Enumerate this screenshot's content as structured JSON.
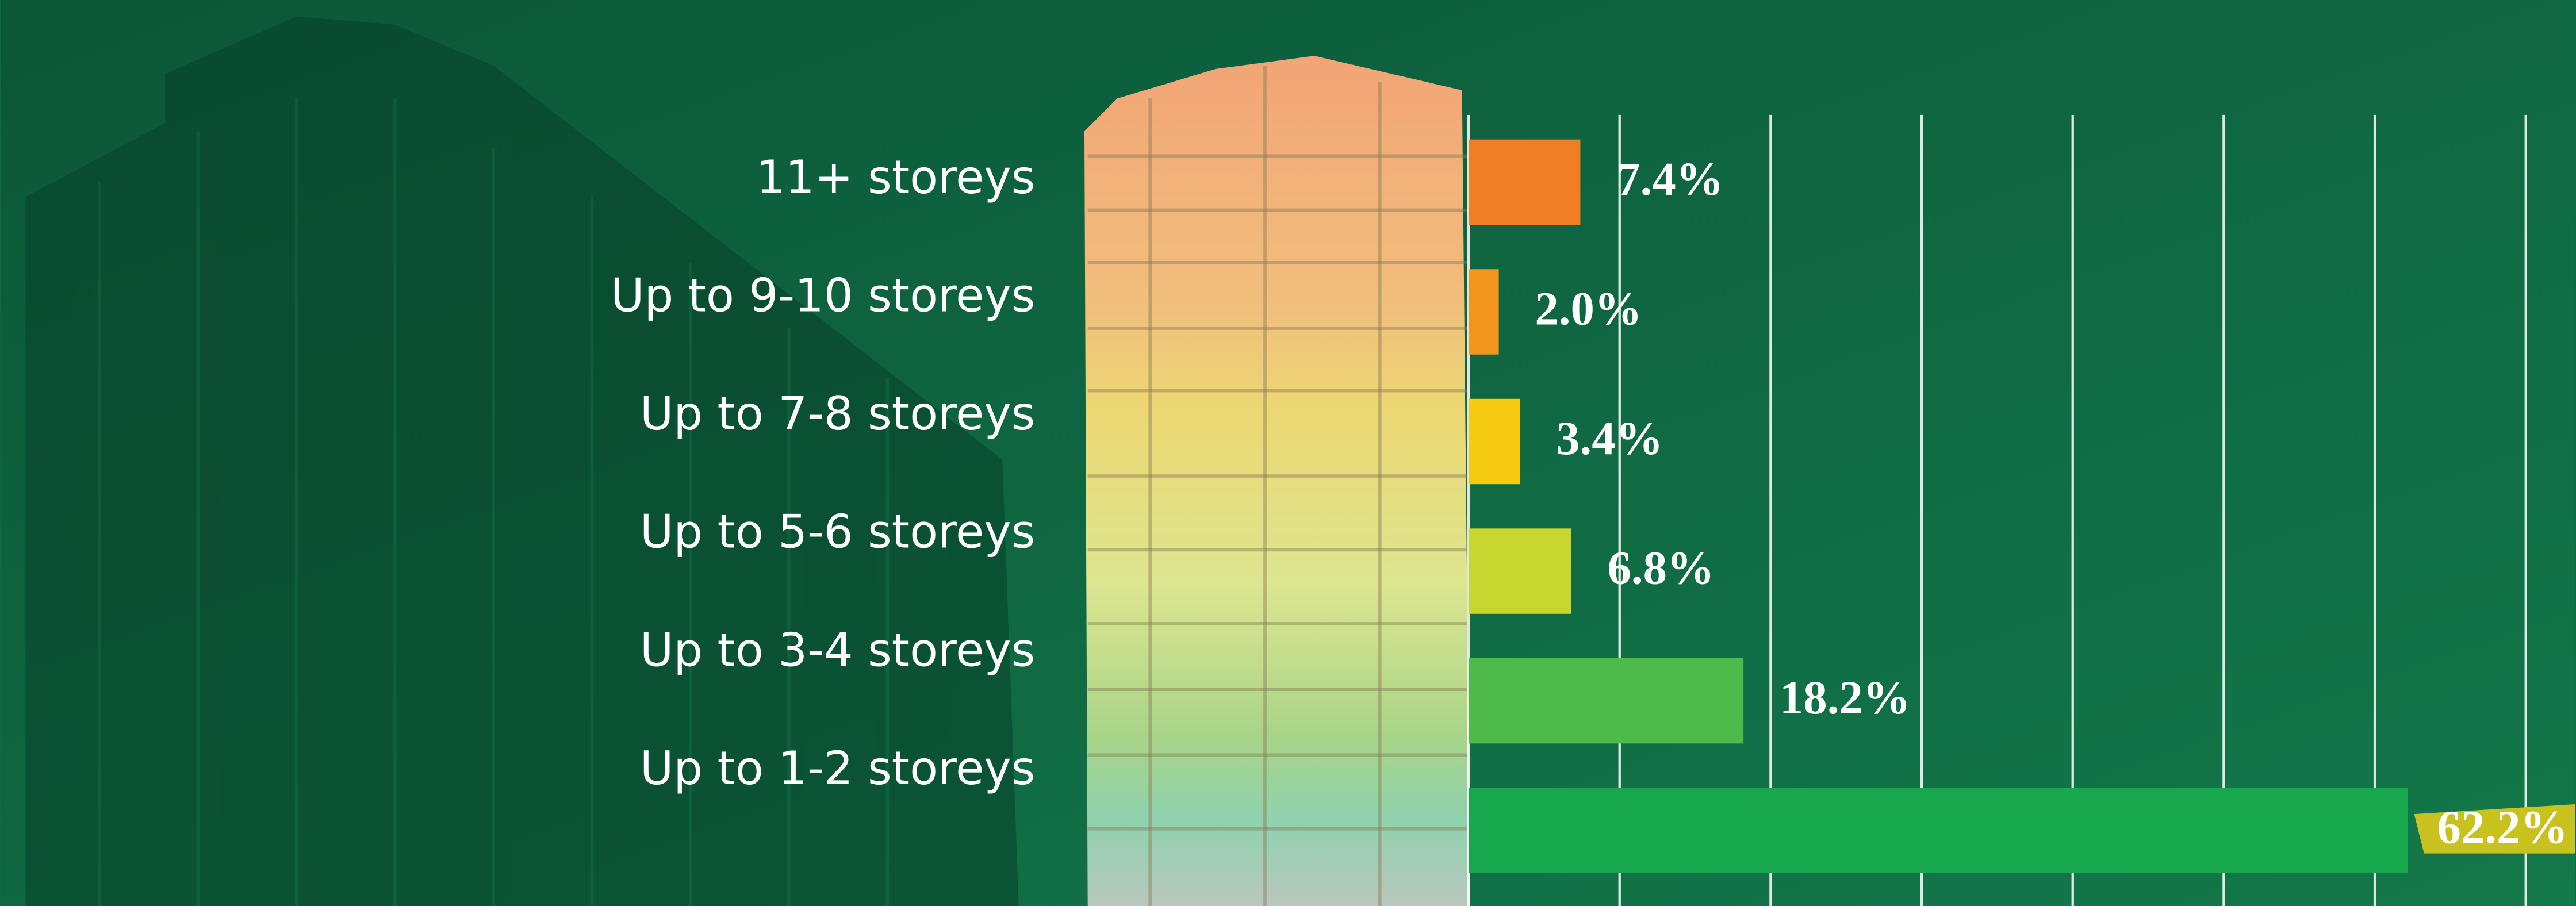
{
  "chart_data": {
    "type": "barh",
    "categories": [
      "11+ storeys",
      "Up to 9-10 storeys",
      "Up to 7-8 storeys",
      "Up to 5-6 storeys",
      "Up to 3-4 storeys",
      "Up to 1-2 storeys"
    ],
    "values": [
      7.4,
      2.0,
      3.4,
      6.8,
      18.2,
      62.2
    ],
    "value_labels": [
      "7.4%",
      "2.0%",
      "3.4%",
      "6.8%",
      "18.2%",
      "62.2%"
    ],
    "colors": [
      "#f07e24",
      "#f3951c",
      "#f7ca12",
      "#c8d630",
      "#4dba4a",
      "#17a84d"
    ],
    "xlim": [
      0,
      70
    ],
    "xticks": [
      0,
      10,
      20,
      30,
      40,
      50,
      60,
      70
    ],
    "grid": true
  }
}
